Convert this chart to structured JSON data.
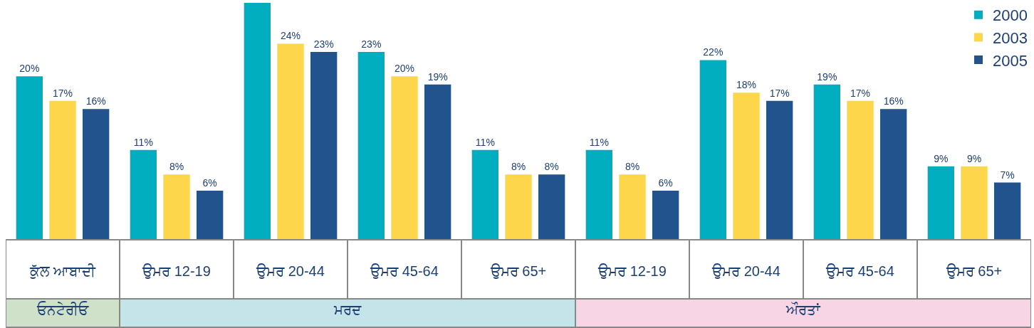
{
  "chart_data": {
    "type": "bar",
    "categories": [
      "ਕੁੱਲ ਆਬਾਦੀ",
      "ਉਮਰ 12-19",
      "ਉਮਰ 20-44",
      "ਉਮਰ 45-64",
      "ਉਮਰ 65+",
      "ਉਮਰ 12-19",
      "ਉਮਰ 20-44",
      "ਉਮਰ 45-64",
      "ਉਮਰ 65+"
    ],
    "series": [
      {
        "name": "2000",
        "color": "#00aebf",
        "values": [
          20,
          11,
          29,
          23,
          11,
          11,
          22,
          19,
          9
        ],
        "value_labels": [
          "20%",
          "11%",
          null,
          "23%",
          "11%",
          "11%",
          "22%",
          "19%",
          "9%"
        ]
      },
      {
        "name": "2003",
        "color": "#fdd64b",
        "values": [
          17,
          8,
          24,
          20,
          8,
          8,
          18,
          17,
          9
        ],
        "value_labels": [
          "17%",
          "8%",
          "24%",
          "20%",
          "8%",
          "8%",
          "18%",
          "17%",
          "9%"
        ]
      },
      {
        "name": "2005",
        "color": "#22538c",
        "values": [
          16,
          6,
          23,
          19,
          8,
          6,
          17,
          16,
          7
        ],
        "value_labels": [
          "16%",
          "6%",
          "23%",
          "19%",
          "8%",
          "6%",
          "17%",
          "16%",
          "7%"
        ]
      }
    ],
    "annotations": [
      "ਓਨਟੇਰੀਓ",
      "ਮਰਦ",
      "ਔਰਤਾਂ"
    ],
    "legend": "top right"
  }
}
